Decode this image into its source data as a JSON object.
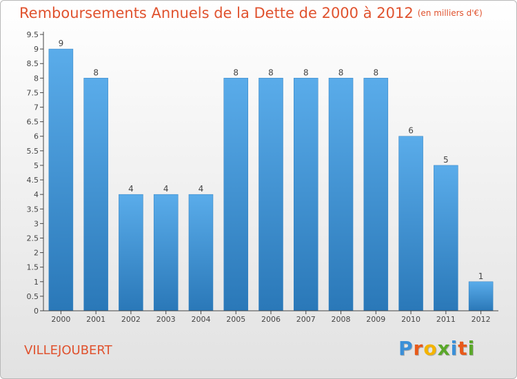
{
  "chart_data": {
    "type": "bar",
    "title": "Remboursements Annuels de la Dette de 2000 à 2012",
    "subtitle": "(en milliers d'€)",
    "categories": [
      "2000",
      "2001",
      "2002",
      "2003",
      "2004",
      "2005",
      "2006",
      "2007",
      "2008",
      "2009",
      "2010",
      "2011",
      "2012"
    ],
    "values": [
      9,
      8,
      4,
      4,
      4,
      8,
      8,
      8,
      8,
      8,
      6,
      5,
      1
    ],
    "data_labels": [
      "9",
      "8",
      "4",
      "4",
      "4",
      "8",
      "8",
      "8",
      "8",
      "8",
      "6",
      "5",
      "1"
    ],
    "ylim": [
      0,
      9.5
    ],
    "y_ticks": [
      "0",
      "0.5",
      "1",
      "1.5",
      "2",
      "2.5",
      "3",
      "3.5",
      "4",
      "4.5",
      "5",
      "5.5",
      "6",
      "6.5",
      "7",
      "7.5",
      "8",
      "8.5",
      "9",
      "9.5"
    ],
    "grid": false,
    "bar_color_top": "#5aacea",
    "bar_color_bottom": "#2a78b8"
  },
  "location": "VILLEJOUBERT",
  "logo": {
    "letters": [
      "P",
      "r",
      "o",
      "x",
      "i",
      "t",
      "i"
    ],
    "colors": [
      "#3a8fd8",
      "#e85a1a",
      "#f4b400",
      "#5aa82a",
      "#3a8fd8",
      "#e85a1a",
      "#5aa82a"
    ]
  },
  "colors": {
    "title": "#e0522e",
    "axis": "#444444"
  }
}
